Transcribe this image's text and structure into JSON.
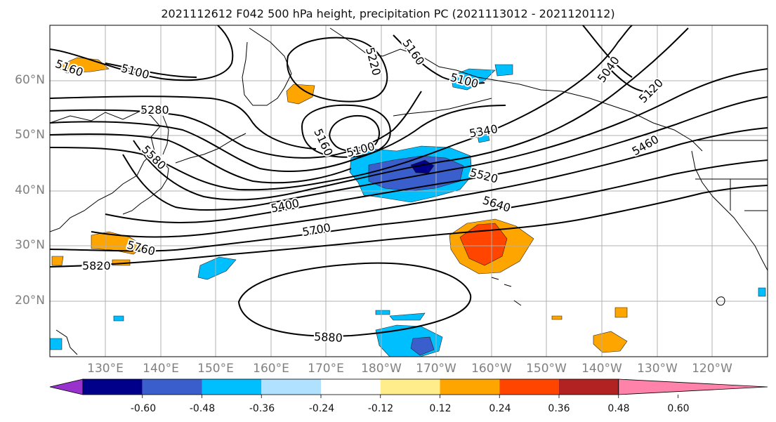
{
  "title": "2021112612 F042 500 hPa height, precipitation PC (2021113012 - 2021120112)",
  "lat_labels": [
    "60°N",
    "50°N",
    "40°N",
    "30°N",
    "20°N"
  ],
  "lon_labels": [
    "130°E",
    "140°E",
    "150°E",
    "160°E",
    "170°E",
    "180°W",
    "170°W",
    "160°W",
    "150°W",
    "140°W",
    "130°W",
    "120°W"
  ],
  "contour_labels": [
    "5160",
    "5100",
    "5220",
    "5160",
    "5040",
    "5100",
    "5120",
    "5280",
    "5160",
    "5100",
    "5340",
    "5580",
    "5460",
    "5520",
    "5400",
    "5640",
    "5700",
    "5760",
    "5820",
    "5880"
  ],
  "colorbar": {
    "ticks": [
      "-0.60",
      "-0.48",
      "-0.36",
      "-0.24",
      "-0.12",
      "0.12",
      "0.24",
      "0.36",
      "0.48",
      "0.60"
    ],
    "colors": [
      "#9932cc",
      "#00008b",
      "#3a5fcd",
      "#00bfff",
      "#b0e2ff",
      "#ffffff",
      "#ffec8b",
      "#ffa500",
      "#ff4500",
      "#b22222",
      "#ff82ab"
    ]
  }
}
